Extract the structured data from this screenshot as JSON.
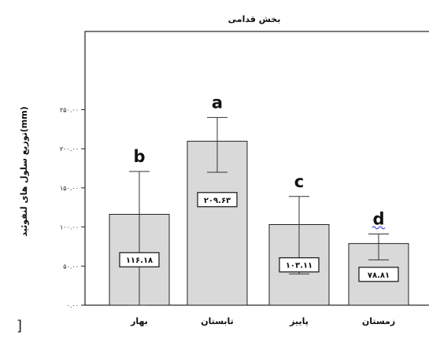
{
  "chart_data": {
    "type": "bar",
    "title": "بخش قدامی",
    "ylabel": "توزیع سلول های لنفوئید(mm)",
    "xlabel": "",
    "ylim": [
      0,
      350
    ],
    "yticks": [
      0,
      50,
      100,
      150,
      200,
      250
    ],
    "ytick_labels": [
      "۰.۰۰",
      "۵۰.۰۰",
      "۱۰۰.۰۰",
      "۱۵۰.۰۰",
      "۲۰۰.۰۰",
      "۲۵۰.۰۰"
    ],
    "categories": [
      "بهار",
      "تابستان",
      "پاییز",
      "زمستان"
    ],
    "values": [
      116.18,
      209.63,
      103.11,
      78.81
    ],
    "value_labels": [
      "۱۱۶.۱۸",
      "۲۰۹.۶۳",
      "۱۰۳.۱۱",
      "۷۸.۸۱"
    ],
    "error_low": [
      0,
      170,
      40,
      58
    ],
    "error_high": [
      171,
      240,
      139,
      91
    ],
    "significance_letters": [
      "b",
      "a",
      "c",
      "d"
    ],
    "grid": false,
    "colors": {
      "bar_fill": "#d9d9d9",
      "bar_stroke": "#222222",
      "error_bar": "#333333",
      "letter_d_underline": "#4a4ad6",
      "axis": "#222222"
    }
  }
}
